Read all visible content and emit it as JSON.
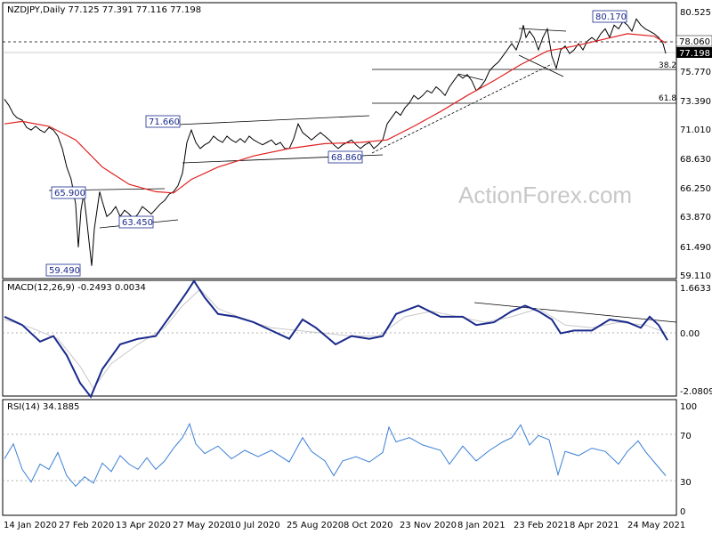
{
  "chart_data": [
    {
      "type": "candlestick",
      "title": "NZDJPY,Daily  77.125 77.391 77.116 77.198",
      "yticks": [
        "80.525",
        "78.060",
        "77.198",
        "75.770",
        "73.390",
        "71.010",
        "68.630",
        "66.250",
        "63.870",
        "61.490",
        "59.110"
      ],
      "ylim": [
        59.11,
        80.525
      ],
      "xticks": [
        "14 Jan 2020",
        "27 Feb 2020",
        "13 Apr 2020",
        "27 May 2020",
        "10 Jul 2020",
        "25 Aug 2020",
        "8 Oct 2020",
        "23 Nov 2020",
        "8 Jan 2021",
        "23 Feb 2021",
        "8 Apr 2021",
        "24 May 2021"
      ],
      "price_labels": [
        "80.170",
        "71.660",
        "68.860",
        "65.900",
        "63.450",
        "59.490"
      ],
      "fib_labels": [
        "38.2",
        "61.8"
      ],
      "watermark": "ActionForex.com",
      "price_path": [
        [
          0,
          73.5
        ],
        [
          5,
          73.0
        ],
        [
          10,
          72.3
        ],
        [
          14,
          72.0
        ],
        [
          20,
          71.8
        ],
        [
          25,
          71.2
        ],
        [
          30,
          71.0
        ],
        [
          35,
          71.3
        ],
        [
          40,
          71.0
        ],
        [
          45,
          70.8
        ],
        [
          50,
          71.2
        ],
        [
          55,
          71.0
        ],
        [
          60,
          70.5
        ],
        [
          65,
          69.5
        ],
        [
          70,
          68.0
        ],
        [
          75,
          67.0
        ],
        [
          80,
          65.0
        ],
        [
          83,
          61.5
        ],
        [
          86,
          64.5
        ],
        [
          89,
          65.8
        ],
        [
          92,
          64.0
        ],
        [
          95,
          62.0
        ],
        [
          98,
          60.0
        ],
        [
          101,
          63.0
        ],
        [
          104,
          64.5
        ],
        [
          107,
          66.0
        ],
        [
          110,
          65.2
        ],
        [
          115,
          64.0
        ],
        [
          120,
          64.3
        ],
        [
          125,
          64.8
        ],
        [
          130,
          64.0
        ],
        [
          135,
          64.5
        ],
        [
          140,
          64.2
        ],
        [
          145,
          63.8
        ],
        [
          150,
          64.2
        ],
        [
          155,
          64.8
        ],
        [
          160,
          64.5
        ],
        [
          165,
          64.2
        ],
        [
          170,
          64.6
        ],
        [
          175,
          65.0
        ],
        [
          180,
          65.3
        ],
        [
          185,
          65.8
        ],
        [
          190,
          66.0
        ],
        [
          195,
          66.5
        ],
        [
          200,
          67.5
        ],
        [
          205,
          70.0
        ],
        [
          210,
          71.0
        ],
        [
          215,
          70.0
        ],
        [
          220,
          69.5
        ],
        [
          225,
          69.8
        ],
        [
          230,
          70.0
        ],
        [
          235,
          70.5
        ],
        [
          240,
          70.2
        ],
        [
          245,
          70.0
        ],
        [
          250,
          70.5
        ],
        [
          255,
          70.2
        ],
        [
          260,
          70.0
        ],
        [
          265,
          70.3
        ],
        [
          270,
          70.0
        ],
        [
          275,
          70.5
        ],
        [
          280,
          70.2
        ],
        [
          285,
          70.0
        ],
        [
          290,
          69.8
        ],
        [
          295,
          70.0
        ],
        [
          300,
          70.2
        ],
        [
          305,
          69.8
        ],
        [
          310,
          70.0
        ],
        [
          315,
          69.5
        ],
        [
          320,
          69.5
        ],
        [
          325,
          70.3
        ],
        [
          330,
          71.5
        ],
        [
          335,
          70.8
        ],
        [
          340,
          70.5
        ],
        [
          345,
          70.2
        ],
        [
          350,
          70.5
        ],
        [
          355,
          70.8
        ],
        [
          360,
          70.5
        ],
        [
          365,
          70.2
        ],
        [
          370,
          69.8
        ],
        [
          375,
          69.5
        ],
        [
          380,
          69.8
        ],
        [
          385,
          70.0
        ],
        [
          390,
          70.2
        ],
        [
          395,
          69.8
        ],
        [
          400,
          69.5
        ],
        [
          405,
          69.8
        ],
        [
          410,
          70.0
        ],
        [
          415,
          69.5
        ],
        [
          420,
          69.8
        ],
        [
          425,
          70.2
        ],
        [
          430,
          71.5
        ],
        [
          435,
          72.0
        ],
        [
          440,
          72.5
        ],
        [
          445,
          72.2
        ],
        [
          450,
          72.8
        ],
        [
          455,
          73.2
        ],
        [
          460,
          73.8
        ],
        [
          465,
          73.5
        ],
        [
          470,
          73.8
        ],
        [
          475,
          74.2
        ],
        [
          480,
          74.0
        ],
        [
          485,
          74.5
        ],
        [
          490,
          74.2
        ],
        [
          495,
          73.8
        ],
        [
          500,
          74.5
        ],
        [
          505,
          75.0
        ],
        [
          510,
          75.5
        ],
        [
          515,
          75.2
        ],
        [
          520,
          75.5
        ],
        [
          525,
          75.0
        ],
        [
          530,
          74.2
        ],
        [
          535,
          74.5
        ],
        [
          540,
          75.0
        ],
        [
          545,
          75.8
        ],
        [
          550,
          76.2
        ],
        [
          555,
          76.5
        ],
        [
          560,
          77.0
        ],
        [
          565,
          77.5
        ],
        [
          570,
          78.0
        ],
        [
          575,
          77.5
        ],
        [
          580,
          78.5
        ],
        [
          583,
          79.5
        ],
        [
          586,
          78.5
        ],
        [
          590,
          79.0
        ],
        [
          595,
          78.5
        ],
        [
          600,
          77.5
        ],
        [
          605,
          78.5
        ],
        [
          610,
          79.2
        ],
        [
          615,
          77.0
        ],
        [
          620,
          76.0
        ],
        [
          625,
          77.5
        ],
        [
          630,
          77.8
        ],
        [
          635,
          77.2
        ],
        [
          640,
          77.5
        ],
        [
          645,
          78.0
        ],
        [
          650,
          77.5
        ],
        [
          655,
          78.2
        ],
        [
          660,
          78.5
        ],
        [
          665,
          78.2
        ],
        [
          670,
          78.8
        ],
        [
          675,
          79.2
        ],
        [
          680,
          78.5
        ],
        [
          685,
          79.5
        ],
        [
          690,
          79.2
        ],
        [
          695,
          79.8
        ],
        [
          700,
          79.5
        ],
        [
          705,
          79.0
        ],
        [
          710,
          80.0
        ],
        [
          715,
          79.5
        ],
        [
          720,
          79.2
        ],
        [
          725,
          79.0
        ],
        [
          730,
          78.8
        ],
        [
          735,
          78.5
        ],
        [
          740,
          78.0
        ],
        [
          743,
          77.2
        ]
      ],
      "sma_path": [
        [
          0,
          71.5
        ],
        [
          20,
          71.7
        ],
        [
          50,
          71.3
        ],
        [
          80,
          70.2
        ],
        [
          110,
          68.0
        ],
        [
          140,
          66.6
        ],
        [
          170,
          66.0
        ],
        [
          190,
          65.9
        ],
        [
          210,
          67.0
        ],
        [
          240,
          68.0
        ],
        [
          280,
          68.9
        ],
        [
          320,
          69.5
        ],
        [
          360,
          69.9
        ],
        [
          400,
          70.0
        ],
        [
          430,
          70.2
        ],
        [
          460,
          71.3
        ],
        [
          490,
          72.5
        ],
        [
          520,
          73.8
        ],
        [
          550,
          75.0
        ],
        [
          580,
          76.3
        ],
        [
          610,
          77.4
        ],
        [
          640,
          77.8
        ],
        [
          670,
          78.3
        ],
        [
          700,
          78.8
        ],
        [
          730,
          78.6
        ],
        [
          743,
          78.06
        ]
      ],
      "macd": {
        "label": "MACD(12,26,9) -0.2493 0.0034",
        "yticks": [
          "1.6633",
          "0.00",
          "-2.0809"
        ],
        "ylim": [
          -2.0809,
          1.6633
        ],
        "path": [
          [
            0,
            0.6
          ],
          [
            20,
            0.3
          ],
          [
            40,
            -0.3
          ],
          [
            55,
            -0.1
          ],
          [
            70,
            -0.8
          ],
          [
            85,
            -1.8
          ],
          [
            97,
            -2.3
          ],
          [
            110,
            -1.3
          ],
          [
            130,
            -0.4
          ],
          [
            150,
            -0.2
          ],
          [
            170,
            -0.1
          ],
          [
            190,
            0.8
          ],
          [
            205,
            1.5
          ],
          [
            213,
            1.9
          ],
          [
            225,
            1.3
          ],
          [
            240,
            0.7
          ],
          [
            260,
            0.6
          ],
          [
            280,
            0.4
          ],
          [
            300,
            0.1
          ],
          [
            320,
            -0.2
          ],
          [
            335,
            0.5
          ],
          [
            350,
            0.2
          ],
          [
            372,
            -0.4
          ],
          [
            390,
            -0.1
          ],
          [
            410,
            -0.2
          ],
          [
            425,
            -0.1
          ],
          [
            440,
            0.7
          ],
          [
            465,
            1.0
          ],
          [
            490,
            0.6
          ],
          [
            515,
            0.6
          ],
          [
            530,
            0.3
          ],
          [
            550,
            0.4
          ],
          [
            570,
            0.8
          ],
          [
            585,
            1.0
          ],
          [
            600,
            0.8
          ],
          [
            615,
            0.5
          ],
          [
            625,
            0.0
          ],
          [
            640,
            0.1
          ],
          [
            660,
            0.1
          ],
          [
            680,
            0.5
          ],
          [
            700,
            0.4
          ],
          [
            715,
            0.2
          ],
          [
            725,
            0.6
          ],
          [
            735,
            0.3
          ],
          [
            745,
            -0.25
          ]
        ],
        "signal_path": [
          [
            0,
            0.5
          ],
          [
            30,
            0.2
          ],
          [
            60,
            -0.2
          ],
          [
            85,
            -1.2
          ],
          [
            100,
            -2.0
          ],
          [
            120,
            -1.1
          ],
          [
            150,
            -0.4
          ],
          [
            180,
            0.2
          ],
          [
            200,
            1.0
          ],
          [
            220,
            1.6
          ],
          [
            240,
            0.9
          ],
          [
            270,
            0.5
          ],
          [
            300,
            0.2
          ],
          [
            330,
            0.1
          ],
          [
            360,
            0.0
          ],
          [
            390,
            -0.1
          ],
          [
            420,
            -0.1
          ],
          [
            450,
            0.6
          ],
          [
            480,
            0.8
          ],
          [
            510,
            0.6
          ],
          [
            540,
            0.4
          ],
          [
            570,
            0.6
          ],
          [
            600,
            0.9
          ],
          [
            630,
            0.3
          ],
          [
            660,
            0.2
          ],
          [
            690,
            0.4
          ],
          [
            720,
            0.3
          ],
          [
            745,
            0.0034
          ]
        ]
      },
      "rsi": {
        "label": "RSI(14) 34.1885",
        "yticks": [
          "100",
          "70",
          "30",
          "0"
        ],
        "ylim": [
          0,
          100
        ],
        "path": [
          [
            0,
            50
          ],
          [
            10,
            64
          ],
          [
            20,
            40
          ],
          [
            30,
            28
          ],
          [
            40,
            45
          ],
          [
            50,
            40
          ],
          [
            60,
            56
          ],
          [
            70,
            34
          ],
          [
            80,
            24
          ],
          [
            90,
            33
          ],
          [
            100,
            27
          ],
          [
            110,
            46
          ],
          [
            120,
            38
          ],
          [
            130,
            53
          ],
          [
            140,
            45
          ],
          [
            150,
            40
          ],
          [
            160,
            51
          ],
          [
            170,
            40
          ],
          [
            180,
            48
          ],
          [
            190,
            60
          ],
          [
            200,
            70
          ],
          [
            208,
            83
          ],
          [
            215,
            64
          ],
          [
            225,
            55
          ],
          [
            240,
            62
          ],
          [
            255,
            50
          ],
          [
            270,
            58
          ],
          [
            285,
            52
          ],
          [
            300,
            58
          ],
          [
            320,
            47
          ],
          [
            335,
            70
          ],
          [
            345,
            57
          ],
          [
            360,
            48
          ],
          [
            370,
            34
          ],
          [
            380,
            48
          ],
          [
            395,
            52
          ],
          [
            410,
            47
          ],
          [
            425,
            56
          ],
          [
            432,
            80
          ],
          [
            440,
            66
          ],
          [
            455,
            70
          ],
          [
            470,
            63
          ],
          [
            490,
            58
          ],
          [
            500,
            45
          ],
          [
            515,
            62
          ],
          [
            530,
            48
          ],
          [
            545,
            58
          ],
          [
            560,
            66
          ],
          [
            570,
            70
          ],
          [
            580,
            82
          ],
          [
            590,
            63
          ],
          [
            600,
            72
          ],
          [
            612,
            68
          ],
          [
            622,
            35
          ],
          [
            630,
            57
          ],
          [
            645,
            53
          ],
          [
            660,
            60
          ],
          [
            675,
            57
          ],
          [
            690,
            45
          ],
          [
            700,
            57
          ],
          [
            712,
            67
          ],
          [
            720,
            57
          ],
          [
            732,
            45
          ],
          [
            743,
            34
          ]
        ]
      }
    }
  ]
}
